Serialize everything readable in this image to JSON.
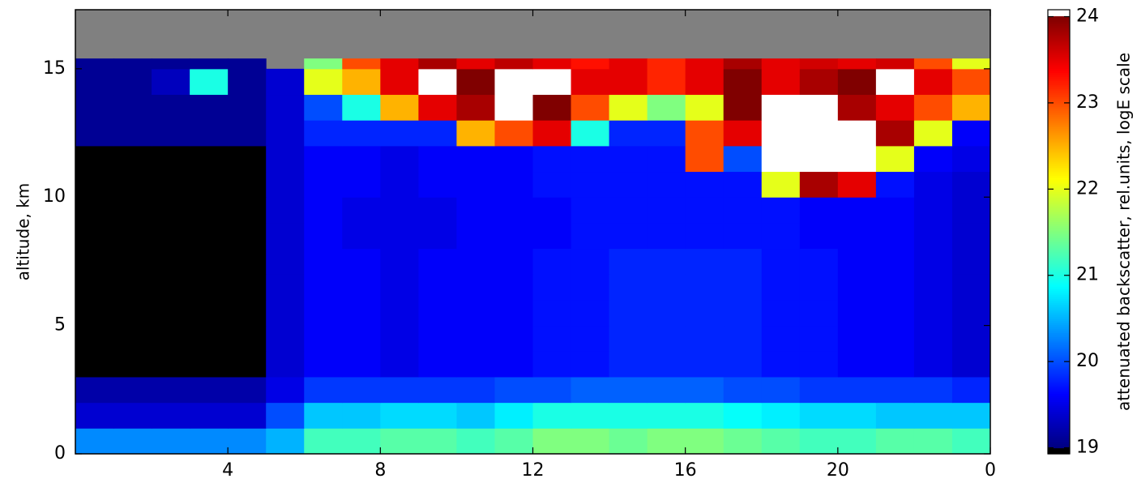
{
  "chart_data": {
    "type": "heatmap",
    "ylabel": "altitude, km",
    "colorbar_label": "attenuated backscatter, rel.units, logE scale",
    "colormap": "jet",
    "background": "#808080",
    "xlim": [
      0,
      24
    ],
    "xticks": [
      4,
      8,
      12,
      16,
      20,
      {
        "value": 24,
        "label": "0"
      }
    ],
    "ylim": [
      0,
      17.3
    ],
    "yticks": [
      0,
      5,
      10,
      15
    ],
    "clim": [
      18.93,
      24.08
    ],
    "cticks": [
      19,
      20,
      21,
      22,
      23,
      24
    ],
    "x_bins": [
      0,
      1,
      2,
      3,
      4,
      5,
      6,
      7,
      8,
      9,
      10,
      11,
      12,
      13,
      14,
      15,
      16,
      17,
      18,
      19,
      20,
      21,
      22,
      23,
      24
    ],
    "y_bins": [
      0,
      1,
      2,
      3,
      4,
      5,
      6,
      7,
      8,
      9,
      10,
      11,
      12,
      13,
      14,
      15,
      15.4,
      17.3
    ],
    "z": [
      [
        20.3,
        20.3,
        20.3,
        20.3,
        20.3,
        20.5,
        21.2,
        21.2,
        21.3,
        21.3,
        21.2,
        21.3,
        21.5,
        21.5,
        21.4,
        21.5,
        21.5,
        21.4,
        21.3,
        21.2,
        21.2,
        21.3,
        21.3,
        21.2
      ],
      [
        19.4,
        19.4,
        19.4,
        19.4,
        19.4,
        20.0,
        20.6,
        20.6,
        20.7,
        20.7,
        20.6,
        20.8,
        21.0,
        21.0,
        21.0,
        21.0,
        21.0,
        20.9,
        20.8,
        20.7,
        20.7,
        20.6,
        20.6,
        20.6
      ],
      [
        19.2,
        19.2,
        19.2,
        19.2,
        19.2,
        19.5,
        19.9,
        19.9,
        19.9,
        19.9,
        19.9,
        20.0,
        20.0,
        20.1,
        20.1,
        20.1,
        20.1,
        20.0,
        20.0,
        19.9,
        19.9,
        19.9,
        19.9,
        19.8
      ],
      [
        18.95,
        18.95,
        18.95,
        18.95,
        18.95,
        19.4,
        19.6,
        19.6,
        19.5,
        19.6,
        19.6,
        19.6,
        19.7,
        19.7,
        19.8,
        19.8,
        19.8,
        19.8,
        19.7,
        19.7,
        19.6,
        19.6,
        19.5,
        19.4
      ],
      [
        18.95,
        18.95,
        18.95,
        18.95,
        18.95,
        19.4,
        19.6,
        19.6,
        19.5,
        19.6,
        19.6,
        19.6,
        19.7,
        19.7,
        19.8,
        19.8,
        19.8,
        19.8,
        19.7,
        19.7,
        19.6,
        19.6,
        19.5,
        19.4
      ],
      [
        18.95,
        18.95,
        18.95,
        18.95,
        18.95,
        19.4,
        19.6,
        19.6,
        19.5,
        19.6,
        19.6,
        19.6,
        19.7,
        19.7,
        19.8,
        19.8,
        19.8,
        19.8,
        19.7,
        19.7,
        19.6,
        19.6,
        19.5,
        19.4
      ],
      [
        18.95,
        18.95,
        18.95,
        18.95,
        18.95,
        19.4,
        19.6,
        19.6,
        19.5,
        19.6,
        19.6,
        19.6,
        19.7,
        19.7,
        19.8,
        19.8,
        19.8,
        19.8,
        19.7,
        19.7,
        19.6,
        19.6,
        19.5,
        19.4
      ],
      [
        18.95,
        18.95,
        18.95,
        18.95,
        18.95,
        19.4,
        19.6,
        19.6,
        19.5,
        19.6,
        19.6,
        19.6,
        19.7,
        19.7,
        19.8,
        19.8,
        19.8,
        19.8,
        19.7,
        19.7,
        19.6,
        19.6,
        19.5,
        19.4
      ],
      [
        18.95,
        18.95,
        18.95,
        18.95,
        18.95,
        19.4,
        19.6,
        19.5,
        19.5,
        19.5,
        19.6,
        19.6,
        19.6,
        19.7,
        19.7,
        19.7,
        19.7,
        19.7,
        19.7,
        19.6,
        19.6,
        19.6,
        19.5,
        19.4
      ],
      [
        18.95,
        18.95,
        18.95,
        18.95,
        18.95,
        19.4,
        19.6,
        19.5,
        19.5,
        19.5,
        19.6,
        19.6,
        19.6,
        19.7,
        19.7,
        19.7,
        19.7,
        19.7,
        19.7,
        19.6,
        19.6,
        19.6,
        19.5,
        19.4
      ],
      [
        18.95,
        18.95,
        18.95,
        18.95,
        18.95,
        19.4,
        19.6,
        19.6,
        19.5,
        19.6,
        19.6,
        19.6,
        19.7,
        19.7,
        19.7,
        19.7,
        19.7,
        19.7,
        22.0,
        23.8,
        23.5,
        19.7,
        19.5,
        19.4
      ],
      [
        18.95,
        18.95,
        18.95,
        18.95,
        18.95,
        19.4,
        19.6,
        19.6,
        19.5,
        19.6,
        19.6,
        19.6,
        19.7,
        19.7,
        19.7,
        19.7,
        23.0,
        20.0,
        24.5,
        24.5,
        24.5,
        22.0,
        19.6,
        19.5
      ],
      [
        19.1,
        19.1,
        19.1,
        19.1,
        19.1,
        19.4,
        19.8,
        19.8,
        19.8,
        19.8,
        22.5,
        23.0,
        23.5,
        21.0,
        19.8,
        19.8,
        23.0,
        23.5,
        24.5,
        24.5,
        24.5,
        23.8,
        22.0,
        19.6
      ],
      [
        19.1,
        19.1,
        19.1,
        19.1,
        19.1,
        19.4,
        20.0,
        21.0,
        22.5,
        23.5,
        23.8,
        24.2,
        24.0,
        23.0,
        22.0,
        21.5,
        22.0,
        24.0,
        24.5,
        24.2,
        23.8,
        23.5,
        23.0,
        22.5
      ],
      [
        19.1,
        19.1,
        19.3,
        21.0,
        19.1,
        19.4,
        22.0,
        22.5,
        23.5,
        24.2,
        24.0,
        24.5,
        24.2,
        23.5,
        23.5,
        23.2,
        23.5,
        24.0,
        23.5,
        23.8,
        24.0,
        24.3,
        23.5,
        23.0
      ],
      [
        19.1,
        19.1,
        19.1,
        19.1,
        19.1,
        null,
        21.5,
        23.0,
        23.5,
        23.8,
        23.5,
        23.7,
        23.5,
        23.3,
        23.5,
        23.2,
        23.5,
        23.8,
        23.5,
        23.6,
        23.5,
        23.6,
        23.0,
        22.0
      ],
      [
        null,
        null,
        null,
        null,
        null,
        null,
        null,
        null,
        null,
        null,
        null,
        null,
        null,
        null,
        null,
        null,
        null,
        null,
        null,
        null,
        null,
        null,
        null,
        null
      ]
    ]
  }
}
